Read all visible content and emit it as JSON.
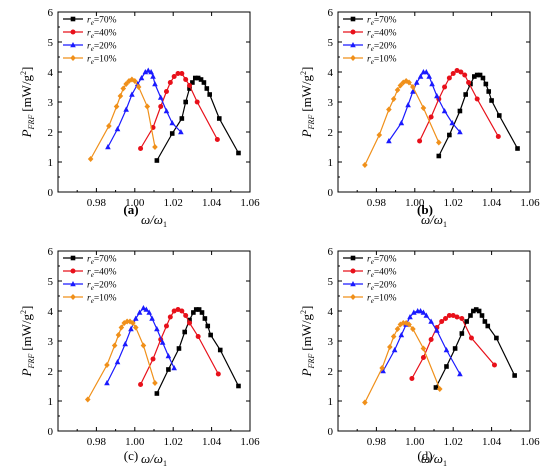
{
  "chart_data": [
    {
      "type": "line",
      "panel_label": "(a)",
      "xlabel": "ω/ω1",
      "ylabel": "P_FRF [mW/g2]",
      "xlim": [
        0.96,
        1.06
      ],
      "ylim": [
        0,
        6
      ],
      "x_ticks": [
        "0.98",
        "1.00",
        "1.02",
        "1.04",
        "1.06"
      ],
      "y_ticks": [
        "0",
        "1",
        "2",
        "3",
        "4",
        "5",
        "6"
      ],
      "legend_position": "top-left",
      "series": [
        {
          "name": "re=70%",
          "color": "#000000",
          "marker": "square",
          "x": [
            1.0115,
            1.0195,
            1.0245,
            1.0265,
            1.0285,
            1.03,
            1.0315,
            1.033,
            1.0345,
            1.036,
            1.0375,
            1.039,
            1.044,
            1.054
          ],
          "y": [
            1.05,
            1.95,
            2.45,
            3.0,
            3.45,
            3.65,
            3.8,
            3.8,
            3.75,
            3.65,
            3.45,
            3.25,
            2.45,
            1.3
          ]
        },
        {
          "name": "re=40%",
          "color": "#e8101a",
          "marker": "circle",
          "x": [
            1.003,
            1.0095,
            1.0135,
            1.0165,
            1.0185,
            1.0205,
            1.0225,
            1.0245,
            1.0265,
            1.0285,
            1.0325,
            1.043
          ],
          "y": [
            1.45,
            2.15,
            2.85,
            3.35,
            3.65,
            3.85,
            3.95,
            3.95,
            3.75,
            3.55,
            3.0,
            1.75
          ]
        },
        {
          "name": "re=20%",
          "color": "#1a1aff",
          "marker": "triangle",
          "x": [
            0.986,
            0.991,
            0.9955,
            0.9985,
            1.0015,
            1.0035,
            1.0055,
            1.007,
            1.0085,
            1.0095,
            1.0105,
            1.0135,
            1.0165,
            1.0195,
            1.024
          ],
          "y": [
            1.5,
            2.1,
            2.75,
            3.25,
            3.6,
            3.8,
            4.0,
            4.05,
            4.0,
            3.85,
            3.6,
            3.15,
            2.7,
            2.3,
            2.0
          ]
        },
        {
          "name": "re=10%",
          "color": "#f0901a",
          "marker": "diamond",
          "x": [
            0.977,
            0.9865,
            0.9905,
            0.9925,
            0.994,
            0.9955,
            0.997,
            0.9985,
            1.0,
            1.002,
            1.0065,
            1.0105
          ],
          "y": [
            1.1,
            2.2,
            2.85,
            3.2,
            3.45,
            3.6,
            3.7,
            3.75,
            3.7,
            3.5,
            2.85,
            1.5
          ]
        }
      ]
    },
    {
      "type": "line",
      "panel_label": "(b)",
      "xlabel": "ω/ω1",
      "ylabel": "P_FRF [mW/g2]",
      "xlim": [
        0.96,
        1.06
      ],
      "ylim": [
        0,
        6
      ],
      "x_ticks": [
        "0.98",
        "1.00",
        "1.02",
        "1.04",
        "1.06"
      ],
      "y_ticks": [
        "0",
        "1",
        "2",
        "3",
        "4",
        "5",
        "6"
      ],
      "legend_position": "top-left",
      "series": [
        {
          "name": "re=70%",
          "color": "#000000",
          "marker": "square",
          "x": [
            1.0125,
            1.018,
            1.0235,
            1.0265,
            1.029,
            1.031,
            1.0325,
            1.034,
            1.0355,
            1.037,
            1.0385,
            1.04,
            1.044,
            1.0535
          ],
          "y": [
            1.2,
            1.9,
            2.7,
            3.25,
            3.6,
            3.85,
            3.9,
            3.9,
            3.8,
            3.6,
            3.35,
            3.05,
            2.55,
            1.45
          ]
        },
        {
          "name": "re=40%",
          "color": "#e8101a",
          "marker": "circle",
          "x": [
            1.0025,
            1.0085,
            1.0125,
            1.0155,
            1.018,
            1.02,
            1.022,
            1.024,
            1.026,
            1.028,
            1.0325,
            1.0435
          ],
          "y": [
            1.7,
            2.5,
            3.1,
            3.5,
            3.8,
            3.95,
            4.05,
            4.0,
            3.9,
            3.65,
            3.1,
            1.85
          ]
        },
        {
          "name": "re=20%",
          "color": "#1a1aff",
          "marker": "triangle",
          "x": [
            0.9865,
            0.993,
            0.9965,
            0.999,
            1.001,
            1.003,
            1.0045,
            1.006,
            1.0075,
            1.009,
            1.0115,
            1.0155,
            1.0195,
            1.0235
          ],
          "y": [
            1.7,
            2.3,
            2.9,
            3.35,
            3.65,
            3.85,
            4.0,
            4.0,
            3.85,
            3.6,
            3.2,
            2.7,
            2.3,
            2.0
          ]
        },
        {
          "name": "re=10%",
          "color": "#f0901a",
          "marker": "diamond",
          "x": [
            0.974,
            0.9815,
            0.9865,
            0.989,
            0.991,
            0.9925,
            0.994,
            0.9955,
            0.997,
            0.999,
            1.0045,
            1.0125
          ],
          "y": [
            0.9,
            1.9,
            2.75,
            3.1,
            3.4,
            3.55,
            3.65,
            3.7,
            3.65,
            3.5,
            2.8,
            1.65
          ]
        }
      ]
    },
    {
      "type": "line",
      "panel_label": "(c)",
      "xlabel": "ω/ω1",
      "ylabel": "P_FRF [mW/g2]",
      "xlim": [
        0.96,
        1.06
      ],
      "ylim": [
        0,
        6
      ],
      "x_ticks": [
        "0.98",
        "1.00",
        "1.02",
        "1.04",
        "1.06"
      ],
      "y_ticks": [
        "0",
        "1",
        "2",
        "3",
        "4",
        "5",
        "6"
      ],
      "legend_position": "top-left",
      "series": [
        {
          "name": "re=70%",
          "color": "#000000",
          "marker": "square",
          "x": [
            1.0115,
            1.0175,
            1.023,
            1.026,
            1.0285,
            1.0305,
            1.032,
            1.0335,
            1.035,
            1.0365,
            1.038,
            1.0395,
            1.0445,
            1.054
          ],
          "y": [
            1.25,
            2.05,
            2.75,
            3.3,
            3.7,
            3.95,
            4.05,
            4.05,
            3.95,
            3.75,
            3.5,
            3.2,
            2.7,
            1.5
          ]
        },
        {
          "name": "re=40%",
          "color": "#e8101a",
          "marker": "circle",
          "x": [
            1.003,
            1.0095,
            1.0135,
            1.0165,
            1.0185,
            1.0205,
            1.0225,
            1.0245,
            1.0265,
            1.0285,
            1.033,
            1.0435
          ],
          "y": [
            1.55,
            2.4,
            3.05,
            3.5,
            3.8,
            4.0,
            4.05,
            4.0,
            3.85,
            3.6,
            3.15,
            1.9
          ]
        },
        {
          "name": "re=20%",
          "color": "#1a1aff",
          "marker": "triangle",
          "x": [
            0.9855,
            0.991,
            0.995,
            0.998,
            1.0005,
            1.0025,
            1.0045,
            1.006,
            1.0075,
            1.009,
            1.0115,
            1.0145,
            1.0175,
            1.0205
          ],
          "y": [
            1.6,
            2.3,
            2.9,
            3.4,
            3.75,
            3.95,
            4.1,
            4.05,
            3.95,
            3.75,
            3.4,
            2.95,
            2.5,
            2.1
          ]
        },
        {
          "name": "re=10%",
          "color": "#f0901a",
          "marker": "diamond",
          "x": [
            0.9755,
            0.9855,
            0.9895,
            0.9915,
            0.993,
            0.9945,
            0.996,
            0.9975,
            0.999,
            1.0005,
            1.0045,
            1.0105
          ],
          "y": [
            1.05,
            2.2,
            2.85,
            3.2,
            3.45,
            3.6,
            3.65,
            3.65,
            3.6,
            3.45,
            2.85,
            1.6
          ]
        }
      ]
    },
    {
      "type": "line",
      "panel_label": "(d)",
      "xlabel": "ω/ω1",
      "ylabel": "P_FRF [mW/g2]",
      "xlim": [
        0.96,
        1.06
      ],
      "ylim": [
        0,
        6
      ],
      "x_ticks": [
        "0.98",
        "1.00",
        "1.02",
        "1.04",
        "1.06"
      ],
      "y_ticks": [
        "0",
        "1",
        "2",
        "3",
        "4",
        "5",
        "6"
      ],
      "legend_position": "top-left",
      "series": [
        {
          "name": "re=70%",
          "color": "#000000",
          "marker": "square",
          "x": [
            1.011,
            1.0165,
            1.021,
            1.0245,
            1.027,
            1.029,
            1.0305,
            1.032,
            1.0335,
            1.035,
            1.0365,
            1.038,
            1.0425,
            1.052
          ],
          "y": [
            1.45,
            2.15,
            2.75,
            3.25,
            3.65,
            3.85,
            4.0,
            4.05,
            4.0,
            3.85,
            3.65,
            3.5,
            3.1,
            1.85
          ]
        },
        {
          "name": "re=40%",
          "color": "#e8101a",
          "marker": "circle",
          "x": [
            0.9985,
            1.0045,
            1.0085,
            1.0115,
            1.014,
            1.016,
            1.018,
            1.02,
            1.022,
            1.0245,
            1.0295,
            1.0415
          ],
          "y": [
            1.75,
            2.45,
            3.05,
            3.45,
            3.65,
            3.75,
            3.85,
            3.85,
            3.8,
            3.75,
            3.1,
            2.2
          ]
        },
        {
          "name": "re=20%",
          "color": "#1a1aff",
          "marker": "triangle",
          "x": [
            0.9835,
            0.9895,
            0.993,
            0.9955,
            0.9975,
            0.9995,
            1.0015,
            1.003,
            1.0045,
            1.006,
            1.0085,
            1.0115,
            1.0165,
            1.0235
          ],
          "y": [
            2.0,
            2.7,
            3.2,
            3.55,
            3.8,
            3.95,
            4.0,
            4.0,
            3.95,
            3.85,
            3.65,
            3.35,
            2.7,
            1.9
          ]
        },
        {
          "name": "re=10%",
          "color": "#f0901a",
          "marker": "diamond",
          "x": [
            0.974,
            0.983,
            0.987,
            0.989,
            0.991,
            0.9925,
            0.994,
            0.9955,
            0.997,
            0.999,
            1.0045,
            1.013
          ],
          "y": [
            0.95,
            2.1,
            2.8,
            3.15,
            3.4,
            3.55,
            3.6,
            3.6,
            3.55,
            3.4,
            2.75,
            1.4
          ]
        }
      ]
    }
  ]
}
